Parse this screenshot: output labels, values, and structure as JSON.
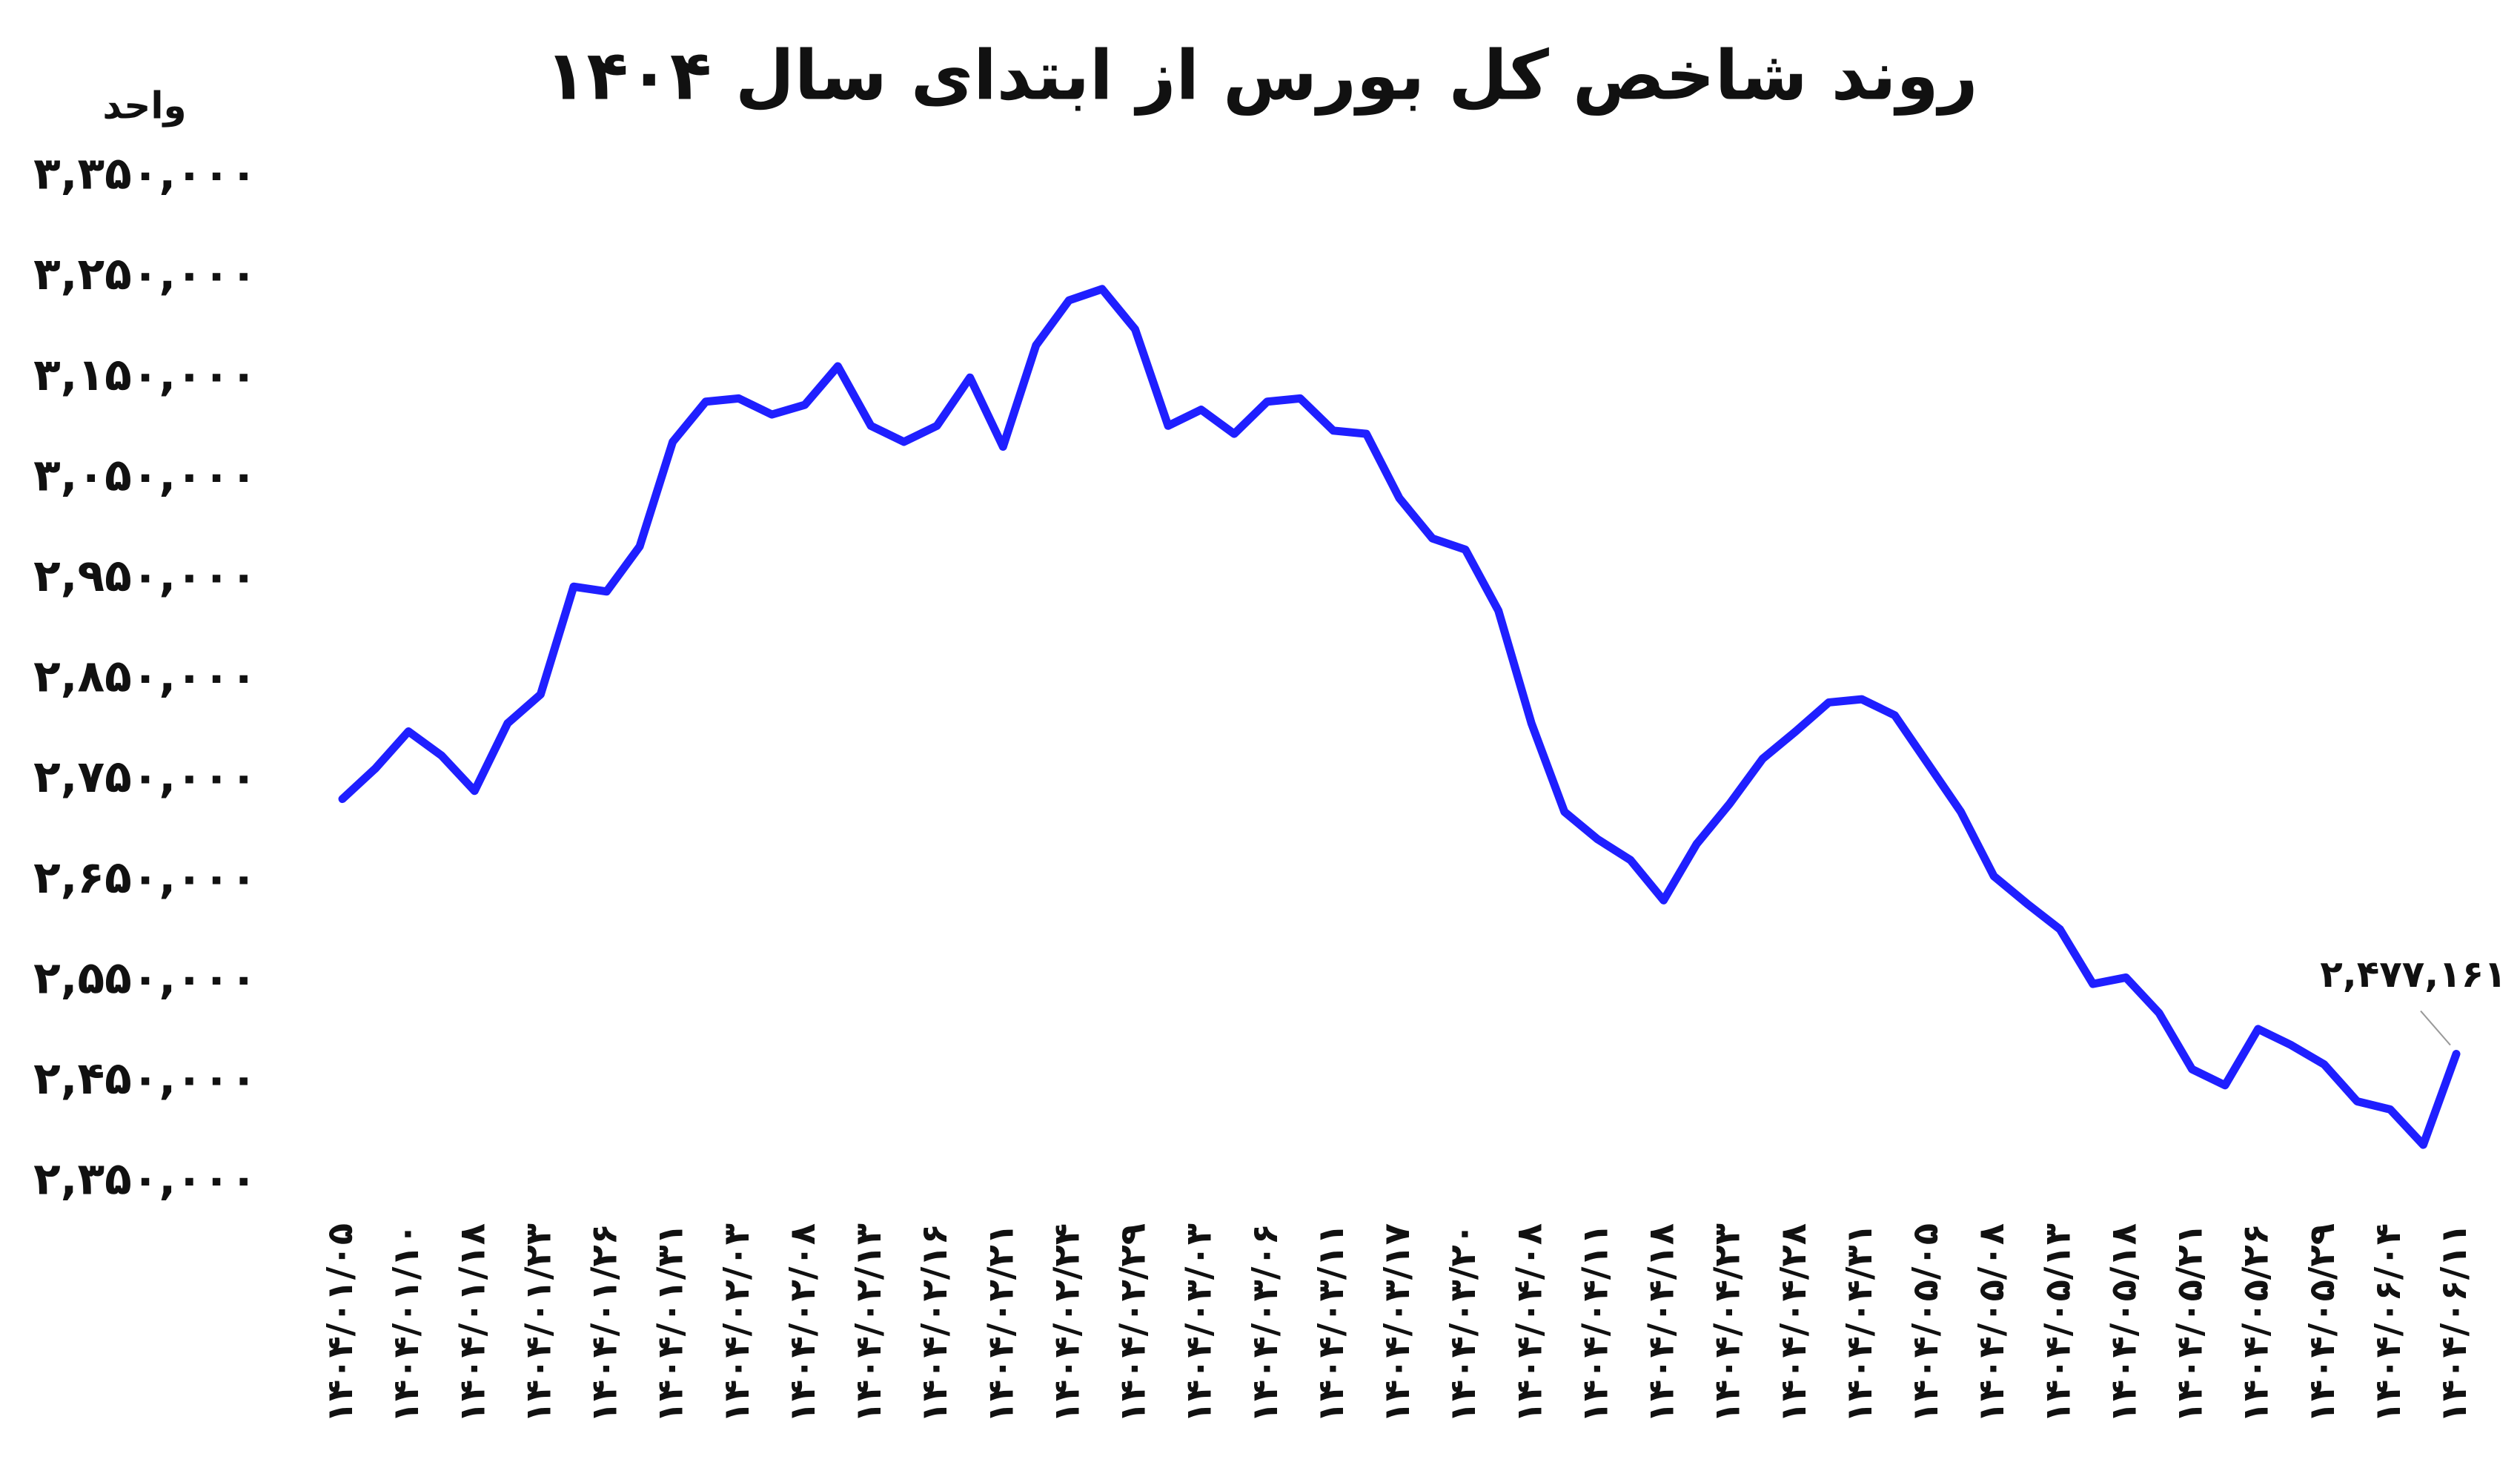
{
  "chart_data": {
    "type": "line",
    "title": "روند شاخص کل بورس از ابتدای سال ۱۴۰۴",
    "y_label": "واحد",
    "categories": [
      "۱۴۰۴/۰۱/۰۵",
      null,
      "۱۴۰۴/۰۱/۱۰",
      null,
      "۱۴۰۴/۰۱/۱۸",
      null,
      "۱۴۰۴/۰۱/۲۳",
      null,
      "۱۴۰۴/۰۱/۲۶",
      null,
      "۱۴۰۴/۰۱/۳۱",
      null,
      "۱۴۰۴/۰۲/۰۳",
      null,
      "۱۴۰۴/۰۲/۰۸",
      null,
      "۱۴۰۴/۰۲/۱۳",
      null,
      "۱۴۰۴/۰۲/۱۶",
      null,
      "۱۴۰۴/۰۲/۲۱",
      null,
      "۱۴۰۴/۰۲/۲۴",
      null,
      "۱۴۰۴/۰۲/۲۹",
      null,
      "۱۴۰۴/۰۳/۰۳",
      null,
      "۱۴۰۴/۰۳/۰۶",
      null,
      "۱۴۰۴/۰۳/۱۱",
      null,
      "۱۴۰۴/۰۳/۱۷",
      null,
      "۱۴۰۴/۰۳/۲۰",
      null,
      "۱۴۰۴/۰۴/۰۸",
      null,
      "۱۴۰۴/۰۴/۱۱",
      null,
      "۱۴۰۴/۰۴/۱۸",
      null,
      "۱۴۰۴/۰۴/۲۳",
      null,
      "۱۴۰۴/۰۴/۲۸",
      null,
      "۱۴۰۴/۰۴/۳۱",
      null,
      "۱۴۰۴/۰۵/۰۵",
      null,
      "۱۴۰۴/۰۵/۰۸",
      null,
      "۱۴۰۴/۰۵/۱۳",
      null,
      "۱۴۰۴/۰۵/۱۸",
      null,
      "۱۴۰۴/۰۵/۲۱",
      null,
      "۱۴۰۴/۰۵/۲۶",
      null,
      "۱۴۰۴/۰۵/۲۹",
      null,
      "۱۴۰۴/۰۶/۰۴",
      null,
      "۱۴۰۴/۰۶/۱۱"
    ],
    "values": [
      2730800,
      2761200,
      2798000,
      2774000,
      2738800,
      2806000,
      2834800,
      2942000,
      2937200,
      2982000,
      3086000,
      3126000,
      3129200,
      3113200,
      3122800,
      3161200,
      3102000,
      3086000,
      3102000,
      3150000,
      3081200,
      3182000,
      3226800,
      3238000,
      3198000,
      3102000,
      3118000,
      3094000,
      3126000,
      3129200,
      3097200,
      3094000,
      3030000,
      2990000,
      2978800,
      2918000,
      2806000,
      2718000,
      2690800,
      2670000,
      2630000,
      2686000,
      2726000,
      2770800,
      2798000,
      2826800,
      2830000,
      2814000,
      2766000,
      2718000,
      2654000,
      2626800,
      2601200,
      2546800,
      2553200,
      2518000,
      2462000,
      2446000,
      2502000,
      2486000,
      2466800,
      2430000,
      2422000,
      2386800,
      2477161
    ],
    "value_labels": [
      null,
      null,
      null,
      null,
      null,
      null,
      null,
      null,
      null,
      null,
      null,
      null,
      null,
      null,
      null,
      null,
      null,
      null,
      null,
      null,
      null,
      null,
      null,
      null,
      null,
      null,
      null,
      null,
      null,
      null,
      null,
      null,
      null,
      null,
      null,
      null,
      null,
      null,
      null,
      null,
      null,
      null,
      null,
      null,
      null,
      null,
      null,
      null,
      null,
      null,
      null,
      null,
      null,
      null,
      null,
      null,
      null,
      null,
      null,
      null,
      null,
      null,
      null,
      null,
      "۲,۴۷۷,۱۶۱"
    ],
    "color": "#1f1fff",
    "ylim": [
      2350000,
      3350000
    ],
    "yticks": [
      {
        "value": 2350000,
        "label": "۲,۳۵۰,۰۰۰"
      },
      {
        "value": 2450000,
        "label": "۲,۴۵۰,۰۰۰"
      },
      {
        "value": 2550000,
        "label": "۲,۵۵۰,۰۰۰"
      },
      {
        "value": 2650000,
        "label": "۲,۶۵۰,۰۰۰"
      },
      {
        "value": 2750000,
        "label": "۲,۷۵۰,۰۰۰"
      },
      {
        "value": 2850000,
        "label": "۲,۸۵۰,۰۰۰"
      },
      {
        "value": 2950000,
        "label": "۲,۹۵۰,۰۰۰"
      },
      {
        "value": 3050000,
        "label": "۳,۰۵۰,۰۰۰"
      },
      {
        "value": 3150000,
        "label": "۳,۱۵۰,۰۰۰"
      },
      {
        "value": 3250000,
        "label": "۳,۲۵۰,۰۰۰"
      },
      {
        "value": 3350000,
        "label": "۳,۳۵۰,۰۰۰"
      }
    ],
    "grid": false
  }
}
